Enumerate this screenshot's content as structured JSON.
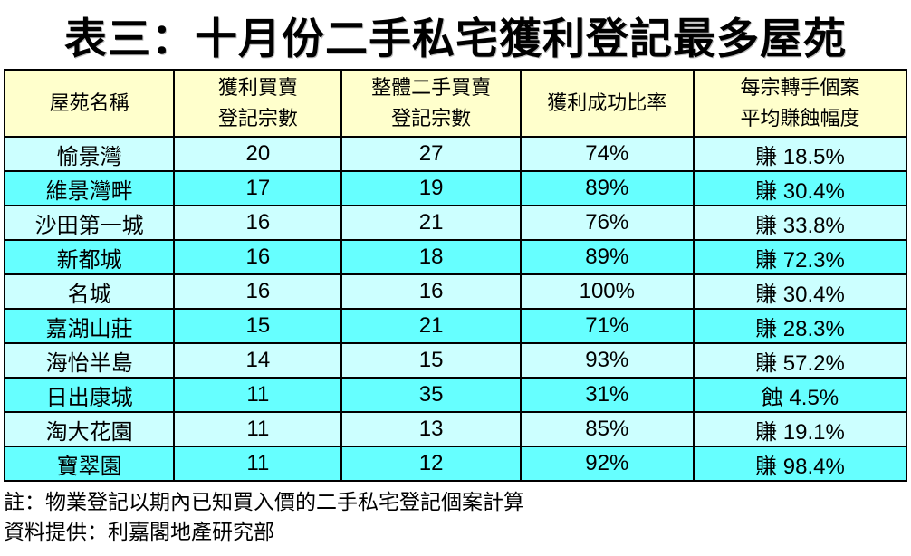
{
  "title": "表三：十月份二手私宅獲利登記最多屋苑",
  "colors": {
    "header_bg": "#FFFFCC",
    "row_light_bg": "#CCFFFF",
    "row_dark_bg": "#66FFFF",
    "border": "#000000",
    "text": "#000000"
  },
  "notes": [
    "註：物業登記以期內已知買入價的二手私宅登記個案計算",
    "資料提供：利嘉閣地產研究部"
  ],
  "chart_data": {
    "type": "table",
    "title": "表三：十月份二手私宅獲利登記最多屋苑",
    "columns": [
      {
        "key": "estate",
        "lines": [
          "屋苑名稱"
        ]
      },
      {
        "key": "profit_registrations",
        "lines": [
          "獲利買賣",
          "登記宗數"
        ]
      },
      {
        "key": "total_secondhand_registrations",
        "lines": [
          "整體二手買賣",
          "登記宗數"
        ]
      },
      {
        "key": "profit_success_ratio",
        "lines": [
          "獲利成功比率"
        ]
      },
      {
        "key": "avg_gain_loss_per_resale",
        "lines": [
          "每宗轉手個案",
          "平均賺蝕幅度"
        ]
      }
    ],
    "rows": [
      [
        "愉景灣",
        "20",
        "27",
        "74%",
        "賺 18.5%"
      ],
      [
        "維景灣畔",
        "17",
        "19",
        "89%",
        "賺 30.4%"
      ],
      [
        "沙田第一城",
        "16",
        "21",
        "76%",
        "賺 33.8%"
      ],
      [
        "新都城",
        "16",
        "18",
        "89%",
        "賺 72.3%"
      ],
      [
        "名城",
        "16",
        "16",
        "100%",
        "賺 30.4%"
      ],
      [
        "嘉湖山莊",
        "15",
        "21",
        "71%",
        "賺 28.3%"
      ],
      [
        "海怡半島",
        "14",
        "15",
        "93%",
        "賺 57.2%"
      ],
      [
        "日出康城",
        "11",
        "35",
        "31%",
        "蝕 4.5%"
      ],
      [
        "淘大花園",
        "11",
        "13",
        "85%",
        "賺 19.1%"
      ],
      [
        "寶翠園",
        "11",
        "12",
        "92%",
        "賺 98.4%"
      ]
    ]
  }
}
